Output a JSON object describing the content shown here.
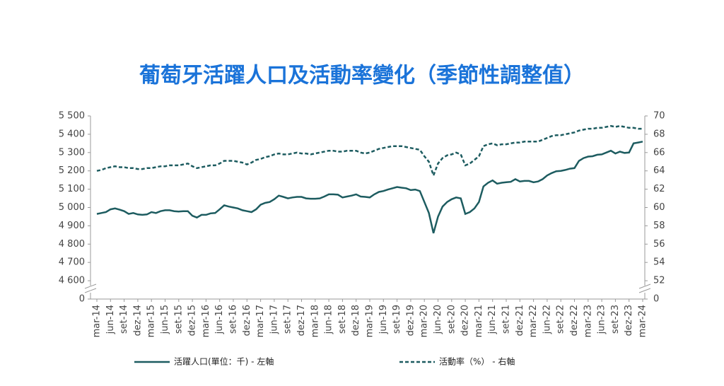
{
  "chart_data": {
    "type": "line",
    "title": "葡萄牙活躍人口及活動率變化（季節性調整值）",
    "categories": [
      "mar-14",
      null,
      null,
      "jun-14",
      null,
      null,
      "set-14",
      null,
      null,
      "dez-14",
      null,
      null,
      "mar-15",
      null,
      null,
      "jun-15",
      null,
      null,
      "set-15",
      null,
      null,
      "dez-15",
      null,
      null,
      "mar-16",
      null,
      null,
      "jun-16",
      null,
      null,
      "set-16",
      null,
      null,
      "dez-16",
      null,
      null,
      "mar-17",
      null,
      null,
      "jun-17",
      null,
      null,
      "set-17",
      null,
      null,
      "dez-17",
      null,
      null,
      "mar-18",
      null,
      null,
      "jun-18",
      null,
      null,
      "set-18",
      null,
      null,
      "dez-18",
      null,
      null,
      "mar-19",
      null,
      null,
      "jun-19",
      null,
      null,
      "set-19",
      null,
      null,
      "dez-19",
      null,
      null,
      "mar-20",
      null,
      null,
      "jun-20",
      null,
      null,
      "set-20",
      null,
      null,
      "dez-20",
      null,
      null,
      "mar-21",
      null,
      null,
      "jun-21",
      null,
      null,
      "set-21",
      null,
      null,
      "dez-21",
      null,
      null,
      "mar-22",
      null,
      null,
      "jun-22",
      null,
      null,
      "set-22",
      null,
      null,
      "dez-22",
      null,
      null,
      "mar-23",
      null,
      null,
      "jun-23",
      null,
      null,
      "set-23",
      null,
      null,
      "dez-23",
      null,
      null,
      "mar-24"
    ],
    "series": [
      {
        "name": "活躍人口(單位：千) - 左軸",
        "color": "#1d5c60",
        "dash": false,
        "values": [
          4965,
          4970,
          4975,
          4990,
          4995,
          4988,
          4980,
          4965,
          4970,
          4962,
          4960,
          4962,
          4975,
          4970,
          4980,
          4985,
          4985,
          4980,
          4978,
          4980,
          4980,
          4955,
          4945,
          4960,
          4960,
          4968,
          4970,
          4990,
          5012,
          5005,
          5000,
          4995,
          4985,
          4980,
          4975,
          4990,
          5015,
          5025,
          5030,
          5045,
          5065,
          5058,
          5050,
          5055,
          5058,
          5058,
          5050,
          5048,
          5048,
          5050,
          5060,
          5072,
          5072,
          5070,
          5055,
          5060,
          5065,
          5072,
          5060,
          5058,
          5055,
          5072,
          5085,
          5090,
          5098,
          5105,
          5112,
          5108,
          5105,
          5095,
          5098,
          5090,
          5030,
          4970,
          4860,
          4950,
          5005,
          5030,
          5045,
          5055,
          5050,
          4965,
          4975,
          4995,
          5030,
          5115,
          5135,
          5148,
          5130,
          5135,
          5138,
          5140,
          5155,
          5142,
          5145,
          5145,
          5138,
          5142,
          5155,
          5175,
          5188,
          5198,
          5200,
          5205,
          5212,
          5215,
          5255,
          5270,
          5278,
          5280,
          5288,
          5290,
          5300,
          5310,
          5295,
          5305,
          5298,
          5300,
          5350,
          5355,
          5360
        ]
      },
      {
        "name": "活動率（%） - 右軸",
        "color": "#1d5c60",
        "dash": true,
        "axis": "y2",
        "values": [
          64.0,
          64.1,
          64.3,
          64.4,
          64.5,
          64.4,
          64.4,
          64.3,
          64.3,
          64.2,
          64.2,
          64.3,
          64.3,
          64.4,
          64.5,
          64.5,
          64.6,
          64.6,
          64.6,
          64.7,
          64.8,
          64.5,
          64.3,
          64.4,
          64.5,
          64.6,
          64.6,
          64.8,
          65.1,
          65.1,
          65.1,
          65.0,
          64.9,
          64.7,
          64.9,
          65.2,
          65.3,
          65.5,
          65.6,
          65.8,
          65.9,
          65.8,
          65.8,
          65.9,
          66.0,
          65.9,
          65.9,
          65.8,
          65.9,
          66.0,
          66.1,
          66.2,
          66.2,
          66.1,
          66.1,
          66.2,
          66.2,
          66.2,
          66.0,
          65.9,
          66.0,
          66.2,
          66.4,
          66.5,
          66.6,
          66.7,
          66.7,
          66.7,
          66.6,
          66.5,
          66.4,
          66.3,
          65.6,
          65.0,
          63.5,
          64.8,
          65.4,
          65.7,
          65.8,
          66.0,
          65.8,
          64.6,
          64.8,
          65.2,
          65.6,
          66.7,
          66.9,
          67.0,
          66.8,
          66.9,
          66.9,
          67.0,
          67.1,
          67.1,
          67.2,
          67.2,
          67.2,
          67.2,
          67.4,
          67.6,
          67.8,
          67.9,
          67.9,
          68.0,
          68.1,
          68.2,
          68.4,
          68.5,
          68.6,
          68.6,
          68.7,
          68.7,
          68.8,
          68.9,
          68.8,
          68.9,
          68.8,
          68.7,
          68.7,
          68.6,
          68.6
        ]
      }
    ],
    "ylim": [
      0,
      5500
    ],
    "yticks": [
      0,
      {
        "value": 4600,
        "label": "4 600"
      },
      {
        "value": 4700,
        "label": "4 700"
      },
      {
        "value": 4800,
        "label": "4 800"
      },
      {
        "value": 4900,
        "label": "4 900"
      },
      {
        "value": 5000,
        "label": "5 000"
      },
      {
        "value": 5100,
        "label": "5 100"
      },
      {
        "value": 5200,
        "label": "5 200"
      },
      {
        "value": 5300,
        "label": "5 300"
      },
      {
        "value": 5400,
        "label": "5 400"
      },
      {
        "value": 5500,
        "label": "5 500"
      }
    ],
    "y2lim": [
      0,
      70
    ],
    "y2ticks": [
      0,
      52,
      54,
      56,
      58,
      60,
      62,
      64,
      66,
      68,
      70
    ],
    "y_break": true,
    "grid": false,
    "legend": "bottom"
  }
}
